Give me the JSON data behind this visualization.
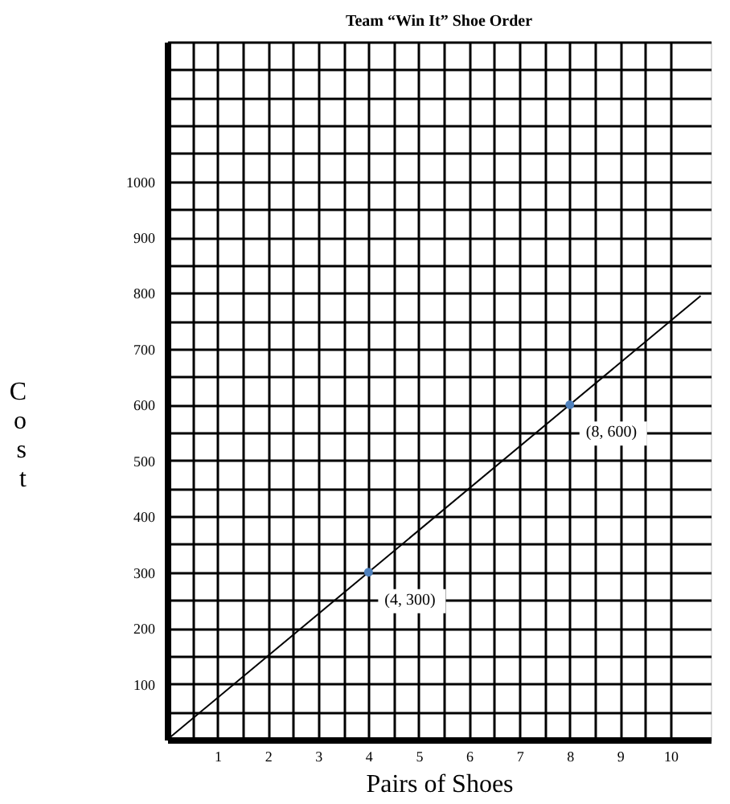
{
  "chart_data": {
    "type": "line",
    "title": "Team “Win It” Shoe Order",
    "xlabel": "Pairs of Shoes",
    "ylabel": "Cost",
    "series": [
      {
        "x": [
          0,
          10.6
        ],
        "values": [
          0,
          795
        ],
        "color": "#000000",
        "marker": "none"
      },
      {
        "type": "scatter",
        "x": [
          4,
          8
        ],
        "values": [
          300,
          600
        ],
        "color": "#4f81bd",
        "marker": "circle"
      }
    ],
    "annotations": [
      {
        "text": "(4, 300)",
        "x": 4,
        "y": 300
      },
      {
        "text": "(8, 600)",
        "x": 8,
        "y": 600
      }
    ],
    "xlim": [
      0,
      10.8
    ],
    "xticks": [
      {
        "value": 0,
        "label": null
      },
      {
        "value": 0.5,
        "label": null
      },
      1,
      {
        "value": 1.5,
        "label": null
      },
      2,
      {
        "value": 2.5,
        "label": null
      },
      3,
      {
        "value": 3.5,
        "label": null
      },
      4,
      {
        "value": 4.5,
        "label": null
      },
      5,
      {
        "value": 5.5,
        "label": null
      },
      6,
      {
        "value": 6.5,
        "label": null
      },
      7,
      {
        "value": 7.5,
        "label": null
      },
      8,
      {
        "value": 8.5,
        "label": null
      },
      9,
      {
        "value": 9.5,
        "label": null
      },
      10
    ],
    "ylim": [
      0,
      1250
    ],
    "yticks": [
      {
        "value": 0,
        "label": null
      },
      {
        "value": 50,
        "label": null
      },
      100,
      {
        "value": 150,
        "label": null
      },
      200,
      {
        "value": 250,
        "label": null
      },
      300,
      {
        "value": 350,
        "label": null
      },
      400,
      {
        "value": 450,
        "label": null
      },
      500,
      {
        "value": 550,
        "label": null
      },
      600,
      {
        "value": 650,
        "label": null
      },
      700,
      {
        "value": 750,
        "label": null
      },
      800,
      {
        "value": 850,
        "label": null
      },
      900,
      {
        "value": 950,
        "label": null
      },
      1000,
      {
        "value": 1050,
        "label": null
      },
      {
        "value": 1100,
        "label": null
      },
      {
        "value": 1150,
        "label": null
      },
      {
        "value": 1200,
        "label": null
      },
      {
        "value": 1250,
        "label": null
      }
    ],
    "grid": true
  }
}
